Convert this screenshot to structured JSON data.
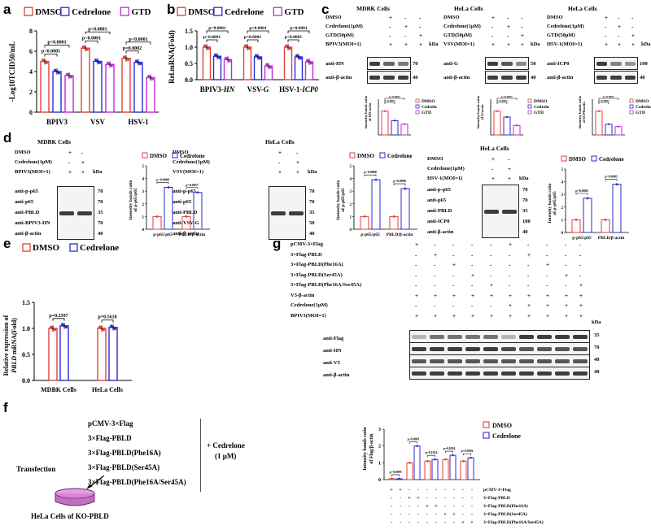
{
  "panel_labels": {
    "a": "a",
    "b": "b",
    "c": "c",
    "d": "d",
    "e": "e",
    "f": "f",
    "g": "g"
  },
  "legend": {
    "dmso": "DMSO",
    "cedrelone": "Cedrelone",
    "gtd": "GTD"
  },
  "colors": {
    "dmso": "#e0413a",
    "cedrelone": "#2b2bd6",
    "gtd": "#c02ad6"
  },
  "plus": "+",
  "minus": "-",
  "kda": "kDa",
  "panel_a": {
    "ylabel": "-Log10TCID50/mL",
    "categories": [
      "BPIV3",
      "VSV",
      "HSV-1"
    ],
    "values": [
      [
        5,
        4,
        3.6
      ],
      [
        6.3,
        5,
        4.7
      ],
      [
        5.3,
        4.9,
        3.4
      ]
    ],
    "yticks": [
      "0",
      "2",
      "4",
      "6",
      "8"
    ],
    "pvals": [
      [
        "p<0.0001",
        "p<0.0001"
      ],
      [
        "p<0.0001",
        "p<0.0001"
      ],
      [
        "p=0.0002",
        "p<0.0001"
      ]
    ]
  },
  "panel_b": {
    "ylabel": "Rel.mRNA(Fold)",
    "categories": [
      "BPIV3-",
      "VSV-",
      "HSV-1-"
    ],
    "categories_italic": [
      "HN",
      "G",
      "ICP0"
    ],
    "values": [
      [
        1,
        0.72,
        0.62
      ],
      [
        1,
        0.7,
        0.42
      ],
      [
        1,
        0.7,
        0.55
      ]
    ],
    "yticks": [
      "0.0",
      "0.5",
      "1.0",
      "1.5"
    ],
    "pvals": [
      [
        "p<0.0001",
        "p=0.0001"
      ],
      [
        "p<0.0001",
        "p<0.0001"
      ],
      [
        "p<0.0001",
        "p<0.0001"
      ]
    ]
  },
  "panel_c": {
    "mdbk": {
      "title": "MDBK Cells",
      "rows": [
        "DMSO",
        "Cedrelone(1μM)",
        "GTD(50μM)",
        "BPIV3(MOI=1)"
      ],
      "signs": [
        [
          "+",
          "-",
          "-"
        ],
        [
          "-",
          "+",
          "-"
        ],
        [
          "-",
          "-",
          "+"
        ],
        [
          "+",
          "+",
          "+"
        ]
      ],
      "blots": [
        "anti-HN",
        "anti-β-actin"
      ],
      "mw": [
        "70",
        "40"
      ],
      "ylabel": "Intensity bands ratio of HN/actin",
      "vals": [
        1,
        0.6,
        0.45
      ],
      "pvals": [
        "p<0.0001",
        "p<0.0001"
      ]
    },
    "hela1": {
      "title": "HeLa Cells",
      "rows": [
        "DMSO",
        "Cedrelone(1μM)",
        "GTD(50μM)",
        "VSV(MOI=1)"
      ],
      "signs": [
        [
          "+",
          "-",
          "-"
        ],
        [
          "-",
          "+",
          "-"
        ],
        [
          "-",
          "-",
          "+"
        ],
        [
          "+",
          "+",
          "+"
        ]
      ],
      "blots": [
        "anti-G",
        "anti-β-actin"
      ],
      "mw": [
        "50",
        "40"
      ],
      "ylabel": "Intensity bands ratio of G/actin",
      "vals": [
        1,
        0.75,
        0.4
      ],
      "pvals": [
        "p<0.0001",
        "p<0.0001"
      ]
    },
    "hela2": {
      "title": "HeLa Cells",
      "rows": [
        "DMSO",
        "Cedrelone(1μM)",
        "GTD(50μM)",
        "HSV-1(MOI=1)"
      ],
      "signs": [
        [
          "+",
          "-",
          "-"
        ],
        [
          "-",
          "+",
          "-"
        ],
        [
          "-",
          "-",
          "+"
        ],
        [
          "+",
          "+",
          "+"
        ]
      ],
      "blots": [
        "anti-ICP0",
        "anti-β-actin"
      ],
      "mw": [
        "100",
        "40"
      ],
      "ylabel": "Intensity bands ratio of ICP0/actin",
      "vals": [
        1,
        0.45,
        0.35
      ],
      "pvals": [
        "p<0.0001",
        "p<0.0001"
      ]
    }
  },
  "panel_d": {
    "mdbk": {
      "title": "MDBK Cells",
      "rows": [
        "DMSO",
        "Cedrelone(1μM)",
        "BPIV3(MOI=1)"
      ],
      "signs": [
        [
          "+",
          "-"
        ],
        [
          "-",
          "+"
        ],
        [
          "+",
          "+"
        ]
      ],
      "blots": [
        "anti-p-p65",
        "anti-p65",
        "anti-PBLD",
        "anti-BPIV3-HN",
        "anti-β-actin"
      ],
      "mw": [
        "70",
        "70",
        "35",
        "70",
        "40"
      ]
    },
    "hela1": {
      "title": "HeLa Cells",
      "rows": [
        "DMSO",
        "Cedrelone(1μM)",
        "VSV(MOI=1)"
      ],
      "signs": [
        [
          "+",
          "-"
        ],
        [
          "-",
          "+"
        ],
        [
          "+",
          "+"
        ]
      ],
      "blots": [
        "anti-p-p65",
        "anti-p65",
        "anti-PBLD",
        "anti-VSV-G",
        "anti-β-actin"
      ],
      "mw": [
        "70",
        "70",
        "35",
        "50",
        "40"
      ]
    },
    "hela2": {
      "title": "HeLa Cells",
      "rows": [
        "DMSO",
        "Cedrelone(1μM)",
        "HSV-1(MOI=1)"
      ],
      "signs": [
        [
          "+",
          "-"
        ],
        [
          "-",
          "+"
        ],
        [
          "+",
          "+"
        ]
      ],
      "blots": [
        "anti-p-p65",
        "anti-p65",
        "anti-PBLD",
        "anti-ICP0",
        "anti-β-actin"
      ],
      "mw": [
        "70",
        "70",
        "35",
        "100",
        "40"
      ]
    },
    "chart_ylabel": "Intensity bands ratio of p-p65/p65",
    "chart_categories": [
      "p-p65/p65",
      "PBLD/β-actin"
    ],
    "charts": [
      {
        "vals": [
          [
            1,
            3.3
          ],
          [
            1,
            2.9
          ]
        ],
        "pvals": [
          "p=0.0008",
          "p=0.0057"
        ]
      },
      {
        "vals": [
          [
            1,
            3.9
          ],
          [
            1,
            3.2
          ]
        ],
        "pvals": [
          "p=0.0008",
          "p=0.0008"
        ]
      },
      {
        "vals": [
          [
            1,
            2.7
          ],
          [
            1,
            3.8
          ]
        ],
        "pvals": [
          "p=0.0002",
          "p=0.0003"
        ]
      }
    ]
  },
  "panel_e": {
    "ylabel_1": "Relative expression of",
    "ylabel_2_italic": "PBLD",
    "ylabel_2_rest": " mRNA(Fold)",
    "categories": [
      "MDBK Cells",
      "HeLa Cells"
    ],
    "values": [
      [
        1,
        1.05
      ],
      [
        1,
        1.02
      ]
    ],
    "yticks": [
      "0.0",
      "0.5",
      "1.0",
      "1.5"
    ],
    "pvals": [
      "p=0.2597",
      "p=0.5618"
    ]
  },
  "panel_f": {
    "constructs": [
      "pCMV-3×Flag",
      "3×Flag-PBLD",
      "3×Flag-PBLD(Phe16A)",
      "3×Flag-PBLD(Ser45A)",
      "3×Flag-PBLD(Phe16A/Ser45A)"
    ],
    "treatment": "+ Cedrelone",
    "treatment_conc": "(1 μM)",
    "transfection": "Transfection",
    "cells": "HeLa Cells of KO-PBLD"
  },
  "panel_g": {
    "rows": [
      "pCMV-3×Flag",
      "3×Flag-PBLD",
      "3×Flag-PBLD(Phe16A)",
      "3×Flag-PBLD(Ser45A)",
      "3×Flag-PBLD(Phe16A/Ser45A)",
      "V5-β-actin",
      "Cedrelone(1μM)",
      "BPIV3(MOI=1)"
    ],
    "signs": [
      [
        "+",
        "-",
        "-",
        "-",
        "-",
        "+",
        "-",
        "-",
        "-",
        "-"
      ],
      [
        "-",
        "+",
        "-",
        "-",
        "-",
        "-",
        "+",
        "-",
        "-",
        "-"
      ],
      [
        "-",
        "-",
        "+",
        "-",
        "-",
        "-",
        "-",
        "+",
        "-",
        "-"
      ],
      [
        "-",
        "-",
        "-",
        "+",
        "-",
        "-",
        "-",
        "-",
        "+",
        "-"
      ],
      [
        "-",
        "-",
        "-",
        "-",
        "+",
        "-",
        "-",
        "-",
        "-",
        "+"
      ],
      [
        "+",
        "+",
        "+",
        "+",
        "+",
        "+",
        "+",
        "+",
        "+",
        "+"
      ],
      [
        "-",
        "-",
        "-",
        "-",
        "-",
        "+",
        "+",
        "+",
        "+",
        "+"
      ],
      [
        "+",
        "+",
        "+",
        "+",
        "+",
        "+",
        "+",
        "+",
        "+",
        "+"
      ]
    ],
    "blots": [
      "anti-Flag",
      "anti-HN",
      "anti-V5",
      "anti-β-actin"
    ],
    "mw": [
      "35",
      "70",
      "40",
      "40"
    ],
    "chart_ylabel": "Intensity bands ratio of Flag/β-actin",
    "chart_vals": [
      [
        0.05,
        0.05
      ],
      [
        1,
        2
      ],
      [
        1.1,
        1.2
      ],
      [
        1.2,
        1.45
      ],
      [
        1.1,
        1.3
      ]
    ],
    "chart_pvals": [
      "p=0.9999",
      "p<0.0001",
      "p=0.1024",
      "p=0.0394",
      "p=0.0596"
    ],
    "yticks": [
      "0",
      "1",
      "2",
      "3"
    ],
    "bottom_rows": [
      "pCMV-3×Flag",
      "3×Flag-PBLD",
      "3×Flag-PBLD(Phe16A)",
      "3×Flag-PBLD(Ser45A)",
      "3×Flag-PBLD(Phe16A/Ser45A)"
    ]
  },
  "chart_data": [
    {
      "type": "bar",
      "title": "a",
      "categories": [
        "BPIV3",
        "VSV",
        "HSV-1"
      ],
      "series": [
        {
          "name": "DMSO",
          "values": [
            5,
            6.3,
            5.3
          ]
        },
        {
          "name": "Cedrelone",
          "values": [
            4,
            5,
            4.9
          ]
        },
        {
          "name": "GTD",
          "values": [
            3.6,
            4.7,
            3.4
          ]
        }
      ],
      "ylabel": "-Log10TCID50/mL",
      "ylim": [
        0,
        8
      ]
    },
    {
      "type": "bar",
      "title": "b",
      "categories": [
        "BPIV3-HN",
        "VSV-G",
        "HSV-1-ICP0"
      ],
      "series": [
        {
          "name": "DMSO",
          "values": [
            1,
            1,
            1
          ]
        },
        {
          "name": "Cedrelone",
          "values": [
            0.72,
            0.7,
            0.7
          ]
        },
        {
          "name": "GTD",
          "values": [
            0.62,
            0.42,
            0.55
          ]
        }
      ],
      "ylabel": "Rel.mRNA(Fold)",
      "ylim": [
        0,
        1.5
      ]
    },
    {
      "type": "bar",
      "title": "e",
      "categories": [
        "MDBK Cells",
        "HeLa Cells"
      ],
      "series": [
        {
          "name": "DMSO",
          "values": [
            1,
            1
          ]
        },
        {
          "name": "Cedrelone",
          "values": [
            1.05,
            1.02
          ]
        }
      ],
      "ylabel": "Relative expression of PBLD mRNA(Fold)",
      "ylim": [
        0,
        1.5
      ]
    },
    {
      "type": "bar",
      "title": "g",
      "categories": [
        "pCMV-3×Flag",
        "3×Flag-PBLD",
        "3×Flag-PBLD(Phe16A)",
        "3×Flag-PBLD(Ser45A)",
        "3×Flag-PBLD(Phe16A/Ser45A)"
      ],
      "series": [
        {
          "name": "DMSO",
          "values": [
            0.05,
            1,
            1.1,
            1.2,
            1.1
          ]
        },
        {
          "name": "Cedrelone",
          "values": [
            0.05,
            2,
            1.2,
            1.45,
            1.3
          ]
        }
      ],
      "ylabel": "Intensity bands ratio of Flag/β-actin",
      "ylim": [
        0,
        3
      ]
    }
  ]
}
